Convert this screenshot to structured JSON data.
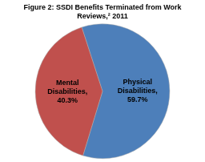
{
  "chart_data": {
    "type": "pie",
    "title": "Figure 2: SSDI Benefits Terminated from Work\nReviews,² 2011",
    "categories": [
      "Physical\nDisabilities,",
      "Mental\nDisabilities,"
    ],
    "values": [
      59.7,
      40.3
    ],
    "value_labels": [
      "59.7%",
      "40.3%"
    ],
    "data_labels": true,
    "colors": [
      "#4d7fba",
      "#c0504d"
    ]
  }
}
